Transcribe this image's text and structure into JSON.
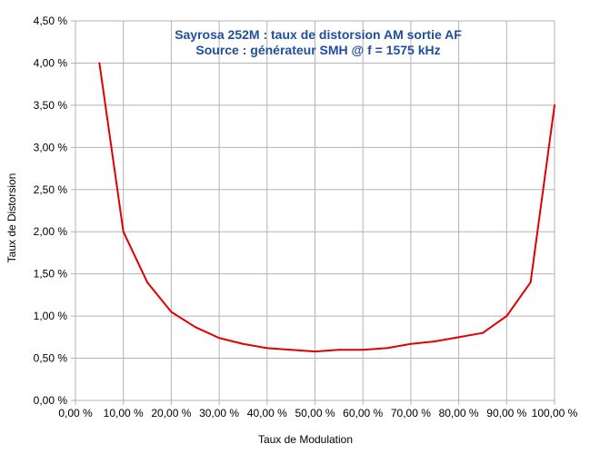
{
  "chart_data": {
    "type": "line",
    "title": "Sayrosa 252M : taux de distorsion AM sortie AF",
    "subtitle": "Source : générateur SMH @ f = 1575 kHz",
    "xlabel": "Taux de Modulation",
    "ylabel": "Taux de Distorsion",
    "xlim": [
      0,
      100
    ],
    "ylim": [
      0,
      4.5
    ],
    "x_ticks": [
      0,
      10,
      20,
      30,
      40,
      50,
      60,
      70,
      80,
      90,
      100
    ],
    "x_tick_labels": [
      "0,00 %",
      "10,00 %",
      "20,00 %",
      "30,00 %",
      "40,00 %",
      "50,00 %",
      "60,00 %",
      "70,00 %",
      "80,00 %",
      "90,00 %",
      "100,00 %"
    ],
    "y_ticks": [
      0,
      0.5,
      1,
      1.5,
      2,
      2.5,
      3,
      3.5,
      4,
      4.5
    ],
    "y_tick_labels": [
      "0,00 %",
      "0,50 %",
      "1,00 %",
      "1,50 %",
      "2,00 %",
      "2,50 %",
      "3,00 %",
      "3,50 %",
      "4,00 %",
      "4,50 %"
    ],
    "grid": true,
    "legend": "none",
    "series": [
      {
        "color": "#e00000",
        "x": [
          5,
          10,
          15,
          20,
          25,
          30,
          35,
          40,
          45,
          50,
          55,
          60,
          65,
          70,
          75,
          80,
          85,
          90,
          95,
          100
        ],
        "y": [
          4.0,
          2.0,
          1.4,
          1.05,
          0.87,
          0.74,
          0.67,
          0.62,
          0.6,
          0.58,
          0.6,
          0.6,
          0.62,
          0.67,
          0.7,
          0.75,
          0.8,
          1.0,
          1.4,
          3.5
        ]
      }
    ]
  }
}
